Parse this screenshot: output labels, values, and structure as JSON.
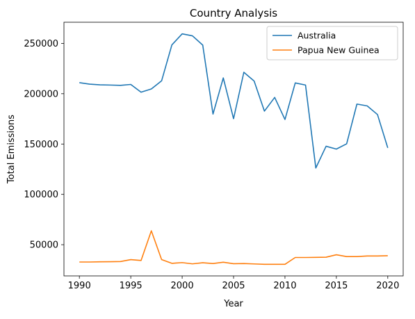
{
  "chart_data": {
    "type": "line",
    "title": "Country Analysis",
    "xlabel": "Year",
    "ylabel": "Total Emissions",
    "xlim": [
      1988.5,
      2021.5
    ],
    "ylim": [
      19000,
      271000
    ],
    "xticks": [
      1990,
      1995,
      2000,
      2005,
      2010,
      2015,
      2020
    ],
    "yticks": [
      50000,
      100000,
      150000,
      200000,
      250000
    ],
    "grid": false,
    "legend_position": "top-right",
    "x": [
      1990,
      1991,
      1992,
      1993,
      1994,
      1995,
      1996,
      1997,
      1998,
      1999,
      2000,
      2001,
      2002,
      2003,
      2004,
      2005,
      2006,
      2007,
      2008,
      2009,
      2010,
      2011,
      2012,
      2013,
      2014,
      2015,
      2016,
      2017,
      2018,
      2019,
      2020
    ],
    "series": [
      {
        "name": "Australia",
        "color": "#1f77b4",
        "values": [
          211000,
          209500,
          208800,
          208600,
          208300,
          209200,
          201500,
          204700,
          212800,
          248500,
          259500,
          257500,
          248300,
          179800,
          215700,
          175200,
          221300,
          212600,
          182700,
          196300,
          174400,
          210700,
          208600,
          126200,
          147800,
          145000,
          150200,
          189700,
          187900,
          179300,
          146200
        ]
      },
      {
        "name": "Papua New Guinea",
        "color": "#ff7f0e",
        "values": [
          32800,
          32800,
          33000,
          33100,
          33300,
          35200,
          34300,
          63800,
          35200,
          31500,
          32200,
          31000,
          32100,
          31300,
          32600,
          31100,
          31300,
          30900,
          30500,
          30500,
          30500,
          37300,
          37300,
          37400,
          37600,
          40000,
          38200,
          38200,
          38800,
          38800,
          39100
        ]
      }
    ]
  }
}
